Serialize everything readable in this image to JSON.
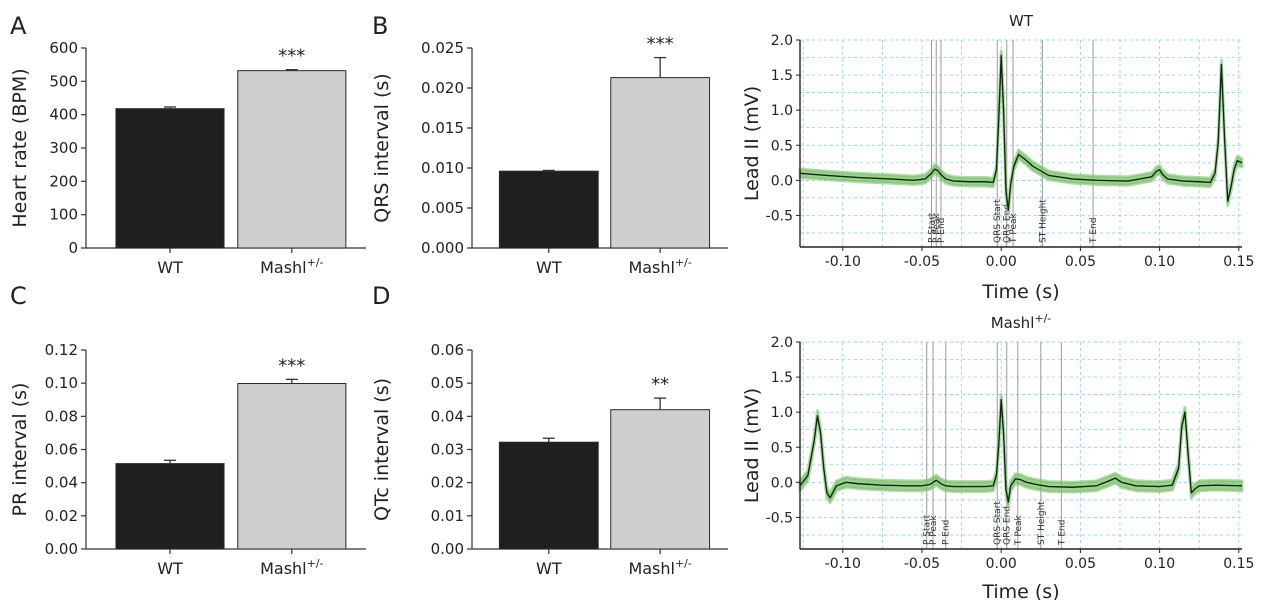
{
  "chart_data": [
    {
      "id": "A",
      "type": "bar",
      "letter": "A",
      "ylabel": "Heart rate (BPM)",
      "ylim": [
        0,
        600
      ],
      "yticks": [
        "0",
        "100",
        "200",
        "300",
        "400",
        "500",
        "600"
      ],
      "categories": [
        {
          "base": "WT",
          "sup": ""
        },
        {
          "base": "Mashl",
          "sup": "+/-"
        }
      ],
      "values": [
        418,
        532
      ],
      "errors": [
        5,
        3
      ],
      "significance": [
        "",
        "***"
      ],
      "bar_colors": [
        "#1f1f1f",
        "#cfcfcf"
      ]
    },
    {
      "id": "B",
      "type": "bar",
      "letter": "B",
      "ylabel": "QRS interval (s)",
      "ylim": [
        0,
        0.025
      ],
      "yticks": [
        "0.000",
        "0.005",
        "0.010",
        "0.015",
        "0.020",
        "0.025"
      ],
      "categories": [
        {
          "base": "WT",
          "sup": ""
        },
        {
          "base": "Mashl",
          "sup": "+/-"
        }
      ],
      "values": [
        0.0096,
        0.0213
      ],
      "errors": [
        0.0001,
        0.0025
      ],
      "significance": [
        "",
        "***"
      ],
      "bar_colors": [
        "#1f1f1f",
        "#cfcfcf"
      ]
    },
    {
      "id": "C",
      "type": "bar",
      "letter": "C",
      "ylabel": "PR interval (s)",
      "ylim": [
        0,
        0.12
      ],
      "yticks": [
        "0.00",
        "0.02",
        "0.04",
        "0.06",
        "0.08",
        "0.10",
        "0.12"
      ],
      "categories": [
        {
          "base": "WT",
          "sup": ""
        },
        {
          "base": "Mashl",
          "sup": "+/-"
        }
      ],
      "values": [
        0.0515,
        0.0998
      ],
      "errors": [
        0.002,
        0.0025
      ],
      "significance": [
        "",
        "***"
      ],
      "bar_colors": [
        "#1f1f1f",
        "#cfcfcf"
      ]
    },
    {
      "id": "D",
      "type": "bar",
      "letter": "D",
      "ylabel": "QTc interval (s)",
      "ylim": [
        0,
        0.06
      ],
      "yticks": [
        "0.00",
        "0.01",
        "0.02",
        "0.03",
        "0.04",
        "0.05",
        "0.06"
      ],
      "categories": [
        {
          "base": "WT",
          "sup": ""
        },
        {
          "base": "Mashl",
          "sup": "+/-"
        }
      ],
      "values": [
        0.0322,
        0.042
      ],
      "errors": [
        0.0012,
        0.0035
      ],
      "significance": [
        "",
        "**"
      ],
      "bar_colors": [
        "#1f1f1f",
        "#cfcfcf"
      ]
    },
    {
      "id": "ecg_wt",
      "type": "line",
      "title": {
        "base": "WT",
        "sup": ""
      },
      "xlabel": "Time (s)",
      "ylabel": "Lead II (mV)",
      "xlim": [
        -0.127,
        0.152
      ],
      "ylim": [
        -0.95,
        2.0
      ],
      "xticks": [
        "-0.10",
        "-0.05",
        "0.00",
        "0.05",
        "0.10",
        "0.15"
      ],
      "xtick_values": [
        -0.1,
        -0.05,
        0,
        0.05,
        0.1,
        0.15
      ],
      "yticks": [
        "-0.5",
        "0.0",
        "0.5",
        "1.0",
        "1.5",
        "2.0"
      ],
      "ytick_values": [
        -0.5,
        0,
        0.5,
        1.0,
        1.5,
        2.0
      ],
      "grid": true,
      "colors": {
        "trace": "#0d2a0d",
        "band": "#7cc26a",
        "grid": "#7cc8e8",
        "marker": "#9a9a9a"
      },
      "series": [
        {
          "x": [
            -0.127,
            -0.11,
            -0.09,
            -0.07,
            -0.055,
            -0.048,
            -0.044,
            -0.042,
            -0.04,
            -0.038,
            -0.035,
            -0.03,
            -0.02,
            -0.01,
            -0.005,
            -0.003,
            -0.0015,
            0.0,
            0.0015,
            0.003,
            0.0045,
            0.006,
            0.008,
            0.011,
            0.015,
            0.02,
            0.03,
            0.045,
            0.06,
            0.08,
            0.095,
            0.098,
            0.1,
            0.102,
            0.105,
            0.115,
            0.125,
            0.132,
            0.135,
            0.137,
            0.139,
            0.141,
            0.143,
            0.145,
            0.147,
            0.149,
            0.152
          ],
          "y": [
            0.1,
            0.07,
            0.04,
            0.02,
            0.0,
            0.02,
            0.1,
            0.16,
            0.14,
            0.08,
            0.02,
            -0.01,
            -0.02,
            -0.02,
            -0.03,
            0.15,
            0.9,
            1.78,
            1.0,
            -0.15,
            -0.42,
            -0.05,
            0.2,
            0.37,
            0.3,
            0.2,
            0.07,
            0.02,
            0.0,
            -0.01,
            0.05,
            0.13,
            0.15,
            0.08,
            0.02,
            -0.01,
            -0.02,
            -0.03,
            0.1,
            0.55,
            1.65,
            0.6,
            -0.3,
            -0.1,
            0.15,
            0.28,
            0.25
          ]
        }
      ],
      "band_spread": 0.06,
      "markers": [
        {
          "x": -0.044,
          "label": "P Start"
        },
        {
          "x": -0.041,
          "label": "P Peak"
        },
        {
          "x": -0.038,
          "label": "P End"
        },
        {
          "x": -0.0025,
          "label": "QRS Start"
        },
        {
          "x": 0.0035,
          "label": "QRS End"
        },
        {
          "x": 0.0075,
          "label": "T Peak"
        },
        {
          "x": 0.026,
          "label": "ST Height"
        },
        {
          "x": 0.058,
          "label": "T End"
        }
      ]
    },
    {
      "id": "ecg_mashl",
      "type": "line",
      "title": {
        "base": "Mashl",
        "sup": "+/-"
      },
      "xlabel": "Time (s)",
      "ylabel": "Lead II (mV)",
      "xlim": [
        -0.127,
        0.152
      ],
      "ylim": [
        -0.95,
        2.0
      ],
      "xticks": [
        "-0.10",
        "-0.05",
        "0.00",
        "0.05",
        "0.10",
        "0.15"
      ],
      "xtick_values": [
        -0.1,
        -0.05,
        0,
        0.05,
        0.1,
        0.15
      ],
      "yticks": [
        "-0.5",
        "0.0",
        "0.5",
        "1.0",
        "1.5",
        "2.0"
      ],
      "ytick_values": [
        -0.5,
        0,
        0.5,
        1.0,
        1.5,
        2.0
      ],
      "grid": true,
      "colors": {
        "trace": "#0d2a0d",
        "band": "#7cc26a",
        "grid": "#7cc8e8",
        "marker": "#9a9a9a"
      },
      "series": [
        {
          "x": [
            -0.127,
            -0.122,
            -0.118,
            -0.116,
            -0.114,
            -0.112,
            -0.11,
            -0.108,
            -0.104,
            -0.098,
            -0.09,
            -0.075,
            -0.06,
            -0.05,
            -0.045,
            -0.041,
            -0.038,
            -0.035,
            -0.03,
            -0.02,
            -0.01,
            -0.005,
            -0.003,
            -0.0015,
            0.0,
            0.0015,
            0.003,
            0.0045,
            0.006,
            0.009,
            0.012,
            0.016,
            0.022,
            0.03,
            0.045,
            0.06,
            0.068,
            0.072,
            0.076,
            0.085,
            0.1,
            0.108,
            0.112,
            0.114,
            0.116,
            0.118,
            0.12,
            0.122,
            0.125,
            0.135,
            0.152
          ],
          "y": [
            -0.05,
            0.1,
            0.6,
            0.95,
            0.7,
            0.2,
            -0.15,
            -0.22,
            -0.05,
            0.0,
            -0.02,
            -0.04,
            -0.05,
            -0.05,
            -0.03,
            0.03,
            -0.02,
            -0.05,
            -0.06,
            -0.06,
            -0.06,
            -0.05,
            0.1,
            0.55,
            1.18,
            0.7,
            -0.1,
            -0.28,
            -0.05,
            0.05,
            0.04,
            0.0,
            -0.03,
            -0.06,
            -0.07,
            -0.05,
            0.02,
            0.06,
            0.0,
            -0.05,
            -0.06,
            -0.04,
            0.2,
            0.8,
            1.0,
            0.4,
            -0.15,
            -0.1,
            -0.05,
            -0.04,
            -0.05
          ]
        }
      ],
      "band_spread": 0.07,
      "markers": [
        {
          "x": -0.047,
          "label": "P Start"
        },
        {
          "x": -0.043,
          "label": "P Peak"
        },
        {
          "x": -0.035,
          "label": "P End"
        },
        {
          "x": -0.0025,
          "label": "QRS Start"
        },
        {
          "x": 0.0035,
          "label": "QRS End"
        },
        {
          "x": 0.0105,
          "label": "T Peak"
        },
        {
          "x": 0.025,
          "label": "ST Height"
        },
        {
          "x": 0.038,
          "label": "T End"
        }
      ]
    }
  ]
}
